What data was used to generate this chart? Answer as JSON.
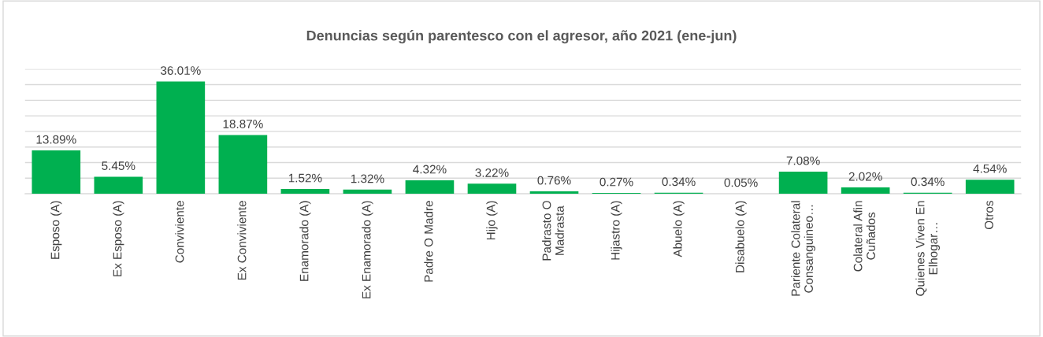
{
  "chart_data": {
    "type": "bar",
    "title": "Denuncias según parentesco con el agresor, año 2021 (ene-jun)",
    "categories": [
      "Esposo (A)",
      "Ex Esposo (A)",
      "Conviviente",
      "Ex Conviviente",
      "Enamorado (A)",
      "Ex Enamorado (A)",
      "Padre O Madre",
      "Hijo (A)",
      "Padrasto O\nMadrasta",
      "Hijastro (A)",
      "Abuelo (A)",
      "Disabuelo (A)",
      "Pariente Colateral\nConsanguineo…",
      "Colateral Afin\nCuñados",
      "Quienes Viven En\nElhogar…",
      "Otros"
    ],
    "values": [
      13.89,
      5.45,
      36.01,
      18.87,
      1.52,
      1.32,
      4.32,
      3.22,
      0.76,
      0.27,
      0.34,
      0.05,
      7.08,
      2.02,
      0.34,
      4.54
    ],
    "value_labels": [
      "13.89%",
      "5.45%",
      "36.01%",
      "18.87%",
      "1.52%",
      "1.32%",
      "4.32%",
      "3.22%",
      "0.76%",
      "0.27%",
      "0.34%",
      "0.05%",
      "7.08%",
      "2.02%",
      "0.34%",
      "4.54%"
    ],
    "color": "#00b050",
    "ylim": [
      0,
      40
    ],
    "yticks": [
      {
        "value": 0,
        "label": null
      },
      {
        "value": 5,
        "label": null
      },
      {
        "value": 10,
        "label": null
      },
      {
        "value": 15,
        "label": null
      },
      {
        "value": 20,
        "label": null
      },
      {
        "value": 25,
        "label": null
      },
      {
        "value": 30,
        "label": null
      },
      {
        "value": 35,
        "label": null
      },
      {
        "value": 40,
        "label": null
      }
    ],
    "grid": "y",
    "tick_labels": "x"
  }
}
